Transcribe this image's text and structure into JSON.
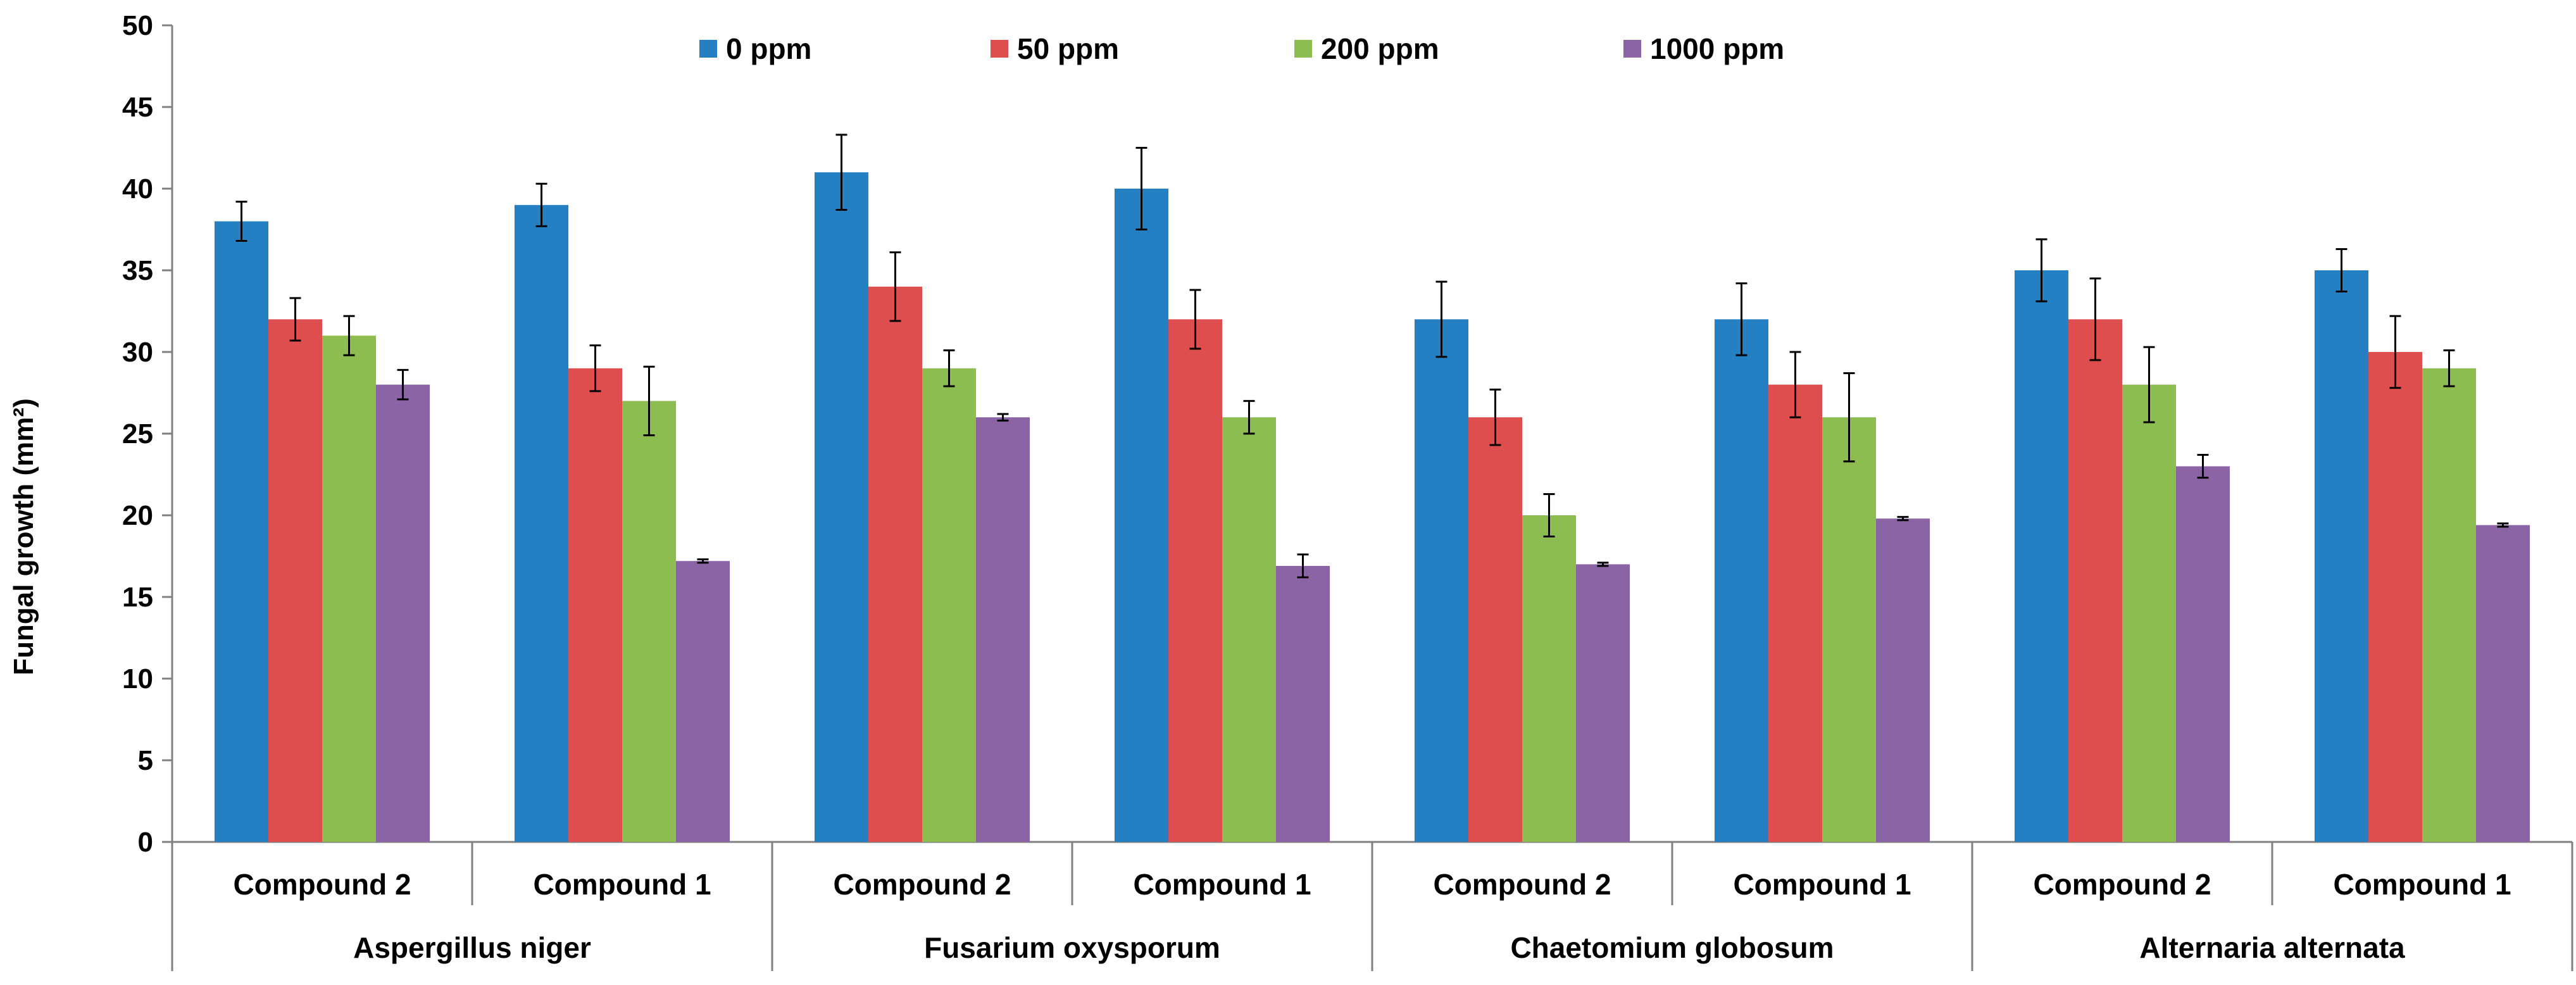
{
  "chart_data": {
    "type": "bar",
    "title": "",
    "ylabel": "Fungal growth (mm²)",
    "xlabel": "",
    "ylim": [
      0,
      50
    ],
    "yticks": [
      0,
      5,
      10,
      15,
      20,
      25,
      30,
      35,
      40,
      45,
      50
    ],
    "grid": false,
    "legend_position": "top",
    "groups": [
      {
        "name": "Aspergillus niger",
        "categories": [
          "Compound 2",
          "Compound 1"
        ]
      },
      {
        "name": "Fusarium oxysporum",
        "categories": [
          "Compound 2",
          "Compound 1"
        ]
      },
      {
        "name": "Chaetomium globosum",
        "categories": [
          "Compound 2",
          "Compound 1"
        ]
      },
      {
        "name": "Alternaria alternata",
        "categories": [
          "Compound 2",
          "Compound 1"
        ]
      }
    ],
    "categories": [
      "Compound 2",
      "Compound 1",
      "Compound 2",
      "Compound 1",
      "Compound 2",
      "Compound 1",
      "Compound 2",
      "Compound 1"
    ],
    "series": [
      {
        "name": "0 ppm",
        "color": "#2580C3",
        "values": [
          38,
          39,
          41,
          40,
          32,
          32,
          35,
          35
        ],
        "errors": [
          1.2,
          1.3,
          2.3,
          2.5,
          2.3,
          2.2,
          1.9,
          1.3
        ]
      },
      {
        "name": "50 ppm",
        "color": "#DF4E4E",
        "values": [
          32,
          29,
          34,
          32,
          26,
          28,
          32,
          30
        ],
        "errors": [
          1.3,
          1.4,
          2.1,
          1.8,
          1.7,
          2.0,
          2.5,
          2.2
        ]
      },
      {
        "name": "200 ppm",
        "color": "#8DBD51",
        "values": [
          31,
          27,
          29,
          26,
          20,
          26,
          28,
          29
        ],
        "errors": [
          1.2,
          2.1,
          1.1,
          1.0,
          1.3,
          2.7,
          2.3,
          1.1
        ]
      },
      {
        "name": "1000 ppm",
        "color": "#8B64A6",
        "values": [
          28,
          17.2,
          26,
          16.9,
          17,
          19.8,
          23,
          19.4
        ],
        "errors": [
          0.9,
          0.1,
          0.2,
          0.7,
          0.1,
          0.1,
          0.7,
          0.1
        ]
      }
    ]
  }
}
